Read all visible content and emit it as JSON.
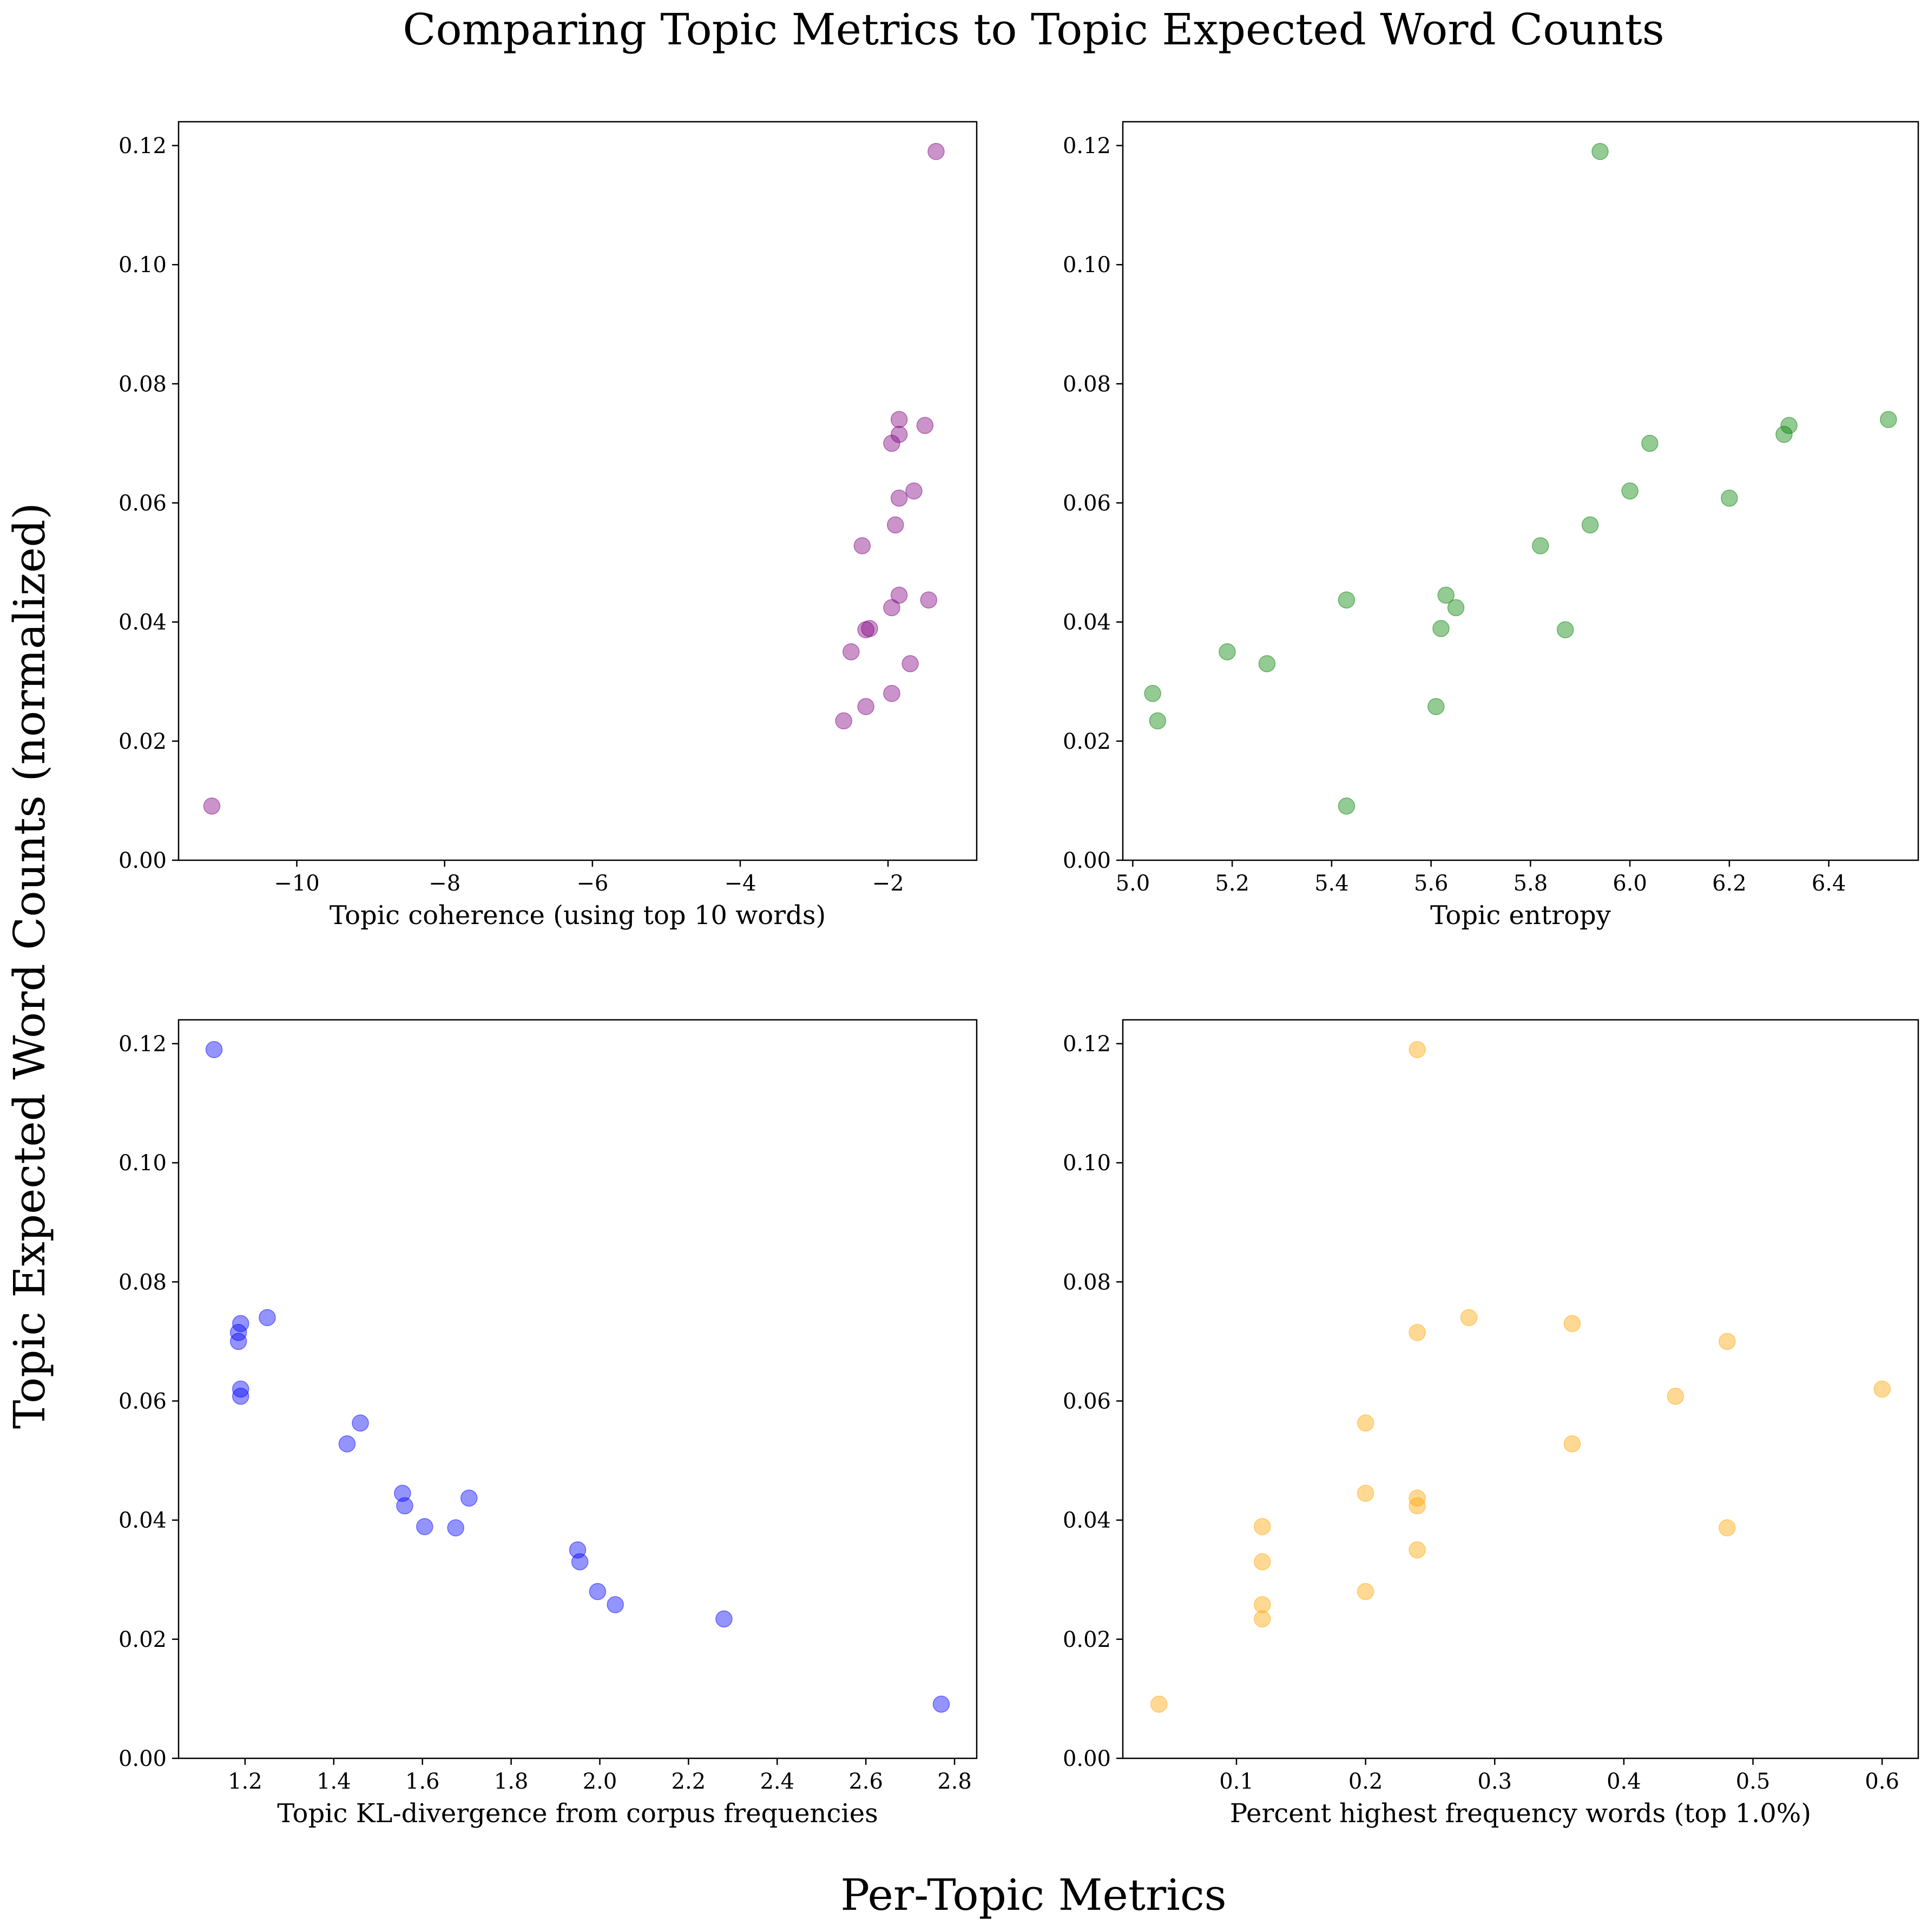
{
  "figure": {
    "title": "Comparing Topic Metrics to Topic Expected Word Counts",
    "ylabel": "Topic Expected Word Counts (normalized)",
    "xlabel": "Per-Topic Metrics"
  },
  "chart_data": [
    {
      "type": "scatter",
      "xlabel": "Topic coherence (using top 10 words)",
      "ylabel": "",
      "color": "#800080",
      "xlim": [
        -11.6,
        -0.8
      ],
      "ylim": [
        0.0,
        0.124
      ],
      "xticks": [
        -10,
        -8,
        -6,
        -4,
        -2
      ],
      "xtick_labels": [
        "−10",
        "−8",
        "−6",
        "−4",
        "−2"
      ],
      "yticks": [
        0.0,
        0.02,
        0.04,
        0.06,
        0.08,
        0.1,
        0.12
      ],
      "ytick_labels": [
        "0.00",
        "0.02",
        "0.04",
        "0.06",
        "0.08",
        "0.10",
        "0.12"
      ],
      "x": [
        -1.35,
        -1.85,
        -1.5,
        -1.85,
        -1.95,
        -1.65,
        -1.85,
        -1.9,
        -2.35,
        -1.85,
        -1.45,
        -1.95,
        -2.25,
        -2.3,
        -2.5,
        -1.7,
        -1.95,
        -2.3,
        -2.6,
        -11.15
      ],
      "y": [
        0.119,
        0.074,
        0.073,
        0.0715,
        0.07,
        0.062,
        0.0608,
        0.0563,
        0.0528,
        0.0445,
        0.0437,
        0.0424,
        0.0389,
        0.0387,
        0.035,
        0.033,
        0.028,
        0.0258,
        0.0234,
        0.0091
      ]
    },
    {
      "type": "scatter",
      "xlabel": "Topic entropy",
      "ylabel": "",
      "color": "#008000",
      "xlim": [
        4.98,
        6.58
      ],
      "ylim": [
        0.0,
        0.124
      ],
      "xticks": [
        5.0,
        5.2,
        5.4,
        5.6,
        5.8,
        6.0,
        6.2,
        6.4
      ],
      "xtick_labels": [
        "5.0",
        "5.2",
        "5.4",
        "5.6",
        "5.8",
        "6.0",
        "6.2",
        "6.4"
      ],
      "yticks": [
        0.0,
        0.02,
        0.04,
        0.06,
        0.08,
        0.1,
        0.12
      ],
      "ytick_labels": [
        "0.00",
        "0.02",
        "0.04",
        "0.06",
        "0.08",
        "0.10",
        "0.12"
      ],
      "x": [
        5.94,
        6.52,
        6.32,
        6.31,
        6.04,
        6.0,
        6.2,
        5.92,
        5.82,
        5.63,
        5.43,
        5.65,
        5.62,
        5.87,
        5.19,
        5.27,
        5.04,
        5.61,
        5.05,
        5.43
      ],
      "y": [
        0.119,
        0.074,
        0.073,
        0.0715,
        0.07,
        0.062,
        0.0608,
        0.0563,
        0.0528,
        0.0445,
        0.0437,
        0.0424,
        0.0389,
        0.0387,
        0.035,
        0.033,
        0.028,
        0.0258,
        0.0234,
        0.0091
      ]
    },
    {
      "type": "scatter",
      "xlabel": "Topic KL-divergence from corpus frequencies",
      "ylabel": "",
      "color": "#0000ff",
      "xlim": [
        1.05,
        2.85
      ],
      "ylim": [
        0.0,
        0.124
      ],
      "xticks": [
        1.2,
        1.4,
        1.6,
        1.8,
        2.0,
        2.2,
        2.4,
        2.6,
        2.8
      ],
      "xtick_labels": [
        "1.2",
        "1.4",
        "1.6",
        "1.8",
        "2.0",
        "2.2",
        "2.4",
        "2.6",
        "2.8"
      ],
      "yticks": [
        0.0,
        0.02,
        0.04,
        0.06,
        0.08,
        0.1,
        0.12
      ],
      "ytick_labels": [
        "0.00",
        "0.02",
        "0.04",
        "0.06",
        "0.08",
        "0.10",
        "0.12"
      ],
      "x": [
        1.13,
        1.25,
        1.19,
        1.185,
        1.185,
        1.19,
        1.19,
        1.46,
        1.43,
        1.555,
        1.705,
        1.56,
        1.605,
        1.675,
        1.95,
        1.955,
        1.995,
        2.035,
        2.28,
        2.77
      ],
      "y": [
        0.119,
        0.074,
        0.073,
        0.0715,
        0.07,
        0.062,
        0.0608,
        0.0563,
        0.0528,
        0.0445,
        0.0437,
        0.0424,
        0.0389,
        0.0387,
        0.035,
        0.033,
        0.028,
        0.0258,
        0.0234,
        0.0091
      ]
    },
    {
      "type": "scatter",
      "xlabel": "Percent highest frequency words (top 1.0%)",
      "ylabel": "",
      "color": "#ffa500",
      "xlim": [
        0.012,
        0.628
      ],
      "ylim": [
        0.0,
        0.124
      ],
      "xticks": [
        0.1,
        0.2,
        0.3,
        0.4,
        0.5,
        0.6
      ],
      "xtick_labels": [
        "0.1",
        "0.2",
        "0.3",
        "0.4",
        "0.5",
        "0.6"
      ],
      "yticks": [
        0.0,
        0.02,
        0.04,
        0.06,
        0.08,
        0.1,
        0.12
      ],
      "ytick_labels": [
        "0.00",
        "0.02",
        "0.04",
        "0.06",
        "0.08",
        "0.10",
        "0.12"
      ],
      "x": [
        0.24,
        0.28,
        0.36,
        0.24,
        0.48,
        0.6,
        0.44,
        0.2,
        0.36,
        0.2,
        0.24,
        0.24,
        0.12,
        0.48,
        0.24,
        0.12,
        0.2,
        0.12,
        0.12,
        0.04
      ],
      "y": [
        0.119,
        0.074,
        0.073,
        0.0715,
        0.07,
        0.062,
        0.0608,
        0.0563,
        0.0528,
        0.0445,
        0.0437,
        0.0424,
        0.0389,
        0.0387,
        0.035,
        0.033,
        0.028,
        0.0258,
        0.0234,
        0.0091
      ]
    }
  ]
}
